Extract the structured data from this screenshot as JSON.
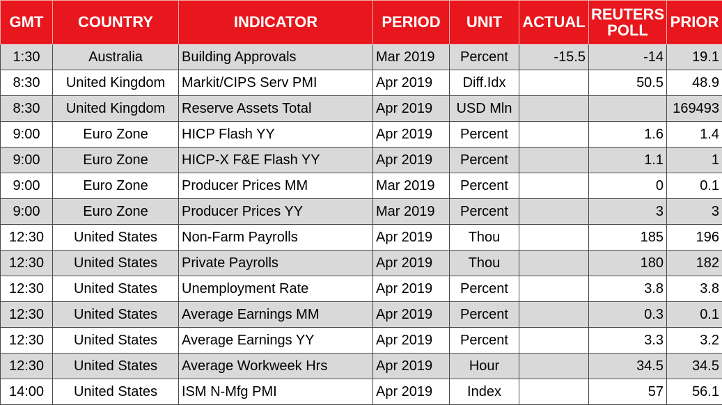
{
  "table": {
    "headers": {
      "gmt": "GMT",
      "country": "COUNTRY",
      "indicator": "INDICATOR",
      "period": "PERIOD",
      "unit": "UNIT",
      "actual": "ACTUAL",
      "poll_line1": "REUTERS",
      "poll_line2": "POLL",
      "prior": "PRIOR"
    },
    "colors": {
      "header_bg": "#e8171d",
      "header_text": "#ffffff",
      "shaded_row": "#d9d9d9",
      "plain_row": "#ffffff"
    },
    "rows": [
      {
        "gmt": "1:30",
        "country": "Australia",
        "indicator": "Building Approvals",
        "period": "Mar 2019",
        "unit": "Percent",
        "actual": "-15.5",
        "poll": "-14",
        "prior": "19.1"
      },
      {
        "gmt": "8:30",
        "country": "United Kingdom",
        "indicator": "Markit/CIPS Serv PMI",
        "period": "Apr 2019",
        "unit": "Diff.Idx",
        "actual": "",
        "poll": "50.5",
        "prior": "48.9"
      },
      {
        "gmt": "8:30",
        "country": "United Kingdom",
        "indicator": "Reserve Assets Total",
        "period": "Apr 2019",
        "unit": "USD Mln",
        "actual": "",
        "poll": "",
        "prior": "169493"
      },
      {
        "gmt": "9:00",
        "country": "Euro Zone",
        "indicator": "HICP Flash YY",
        "period": "Apr 2019",
        "unit": "Percent",
        "actual": "",
        "poll": "1.6",
        "prior": "1.4"
      },
      {
        "gmt": "9:00",
        "country": "Euro Zone",
        "indicator": "HICP-X F&E Flash YY",
        "period": "Apr 2019",
        "unit": "Percent",
        "actual": "",
        "poll": "1.1",
        "prior": "1"
      },
      {
        "gmt": "9:00",
        "country": "Euro Zone",
        "indicator": "Producer Prices MM",
        "period": "Mar 2019",
        "unit": "Percent",
        "actual": "",
        "poll": "0",
        "prior": "0.1"
      },
      {
        "gmt": "9:00",
        "country": "Euro Zone",
        "indicator": "Producer Prices YY",
        "period": "Mar 2019",
        "unit": "Percent",
        "actual": "",
        "poll": "3",
        "prior": "3"
      },
      {
        "gmt": "12:30",
        "country": "United States",
        "indicator": "Non-Farm Payrolls",
        "period": "Apr 2019",
        "unit": "Thou",
        "actual": "",
        "poll": "185",
        "prior": "196"
      },
      {
        "gmt": "12:30",
        "country": "United States",
        "indicator": "Private Payrolls",
        "period": "Apr 2019",
        "unit": "Thou",
        "actual": "",
        "poll": "180",
        "prior": "182"
      },
      {
        "gmt": "12:30",
        "country": "United States",
        "indicator": "Unemployment Rate",
        "period": "Apr 2019",
        "unit": "Percent",
        "actual": "",
        "poll": "3.8",
        "prior": "3.8"
      },
      {
        "gmt": "12:30",
        "country": "United States",
        "indicator": "Average Earnings MM",
        "period": "Apr 2019",
        "unit": "Percent",
        "actual": "",
        "poll": "0.3",
        "prior": "0.1"
      },
      {
        "gmt": "12:30",
        "country": "United States",
        "indicator": "Average Earnings YY",
        "period": "Apr 2019",
        "unit": "Percent",
        "actual": "",
        "poll": "3.3",
        "prior": "3.2"
      },
      {
        "gmt": "12:30",
        "country": "United States",
        "indicator": "Average Workweek Hrs",
        "period": "Apr 2019",
        "unit": "Hour",
        "actual": "",
        "poll": "34.5",
        "prior": "34.5"
      },
      {
        "gmt": "14:00",
        "country": "United States",
        "indicator": "ISM N-Mfg PMI",
        "period": "Apr 2019",
        "unit": "Index",
        "actual": "",
        "poll": "57",
        "prior": "56.1"
      }
    ]
  }
}
